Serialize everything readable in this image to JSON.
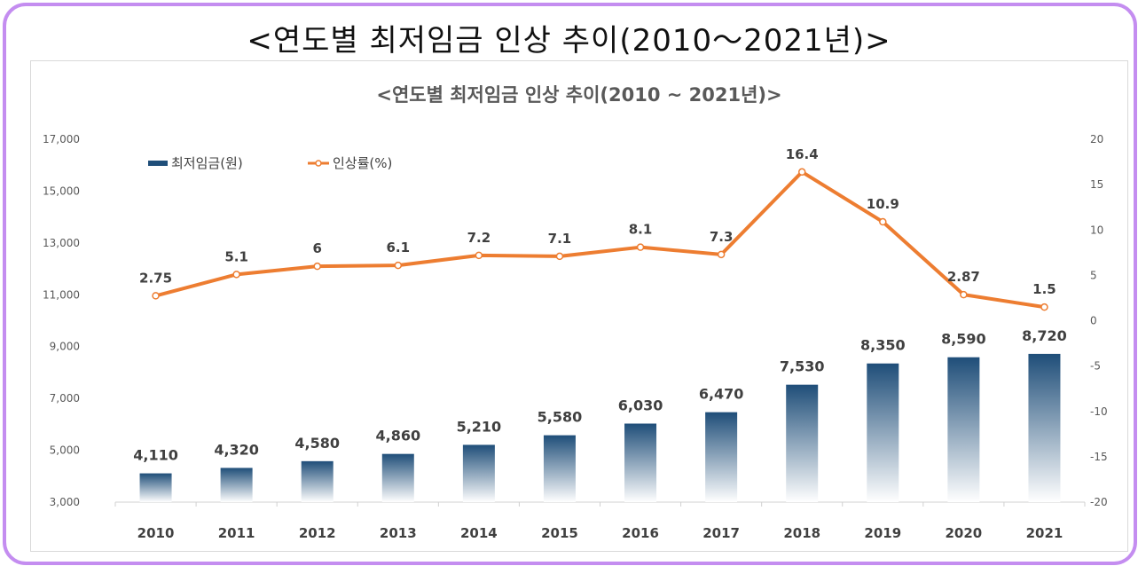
{
  "page_title": "<연도별 최저임금 인상 추이(2010～2021년)>",
  "chart_data": {
    "type": "bar+line",
    "title": "<연도별 최저임금 인상 추이(2010 ~ 2021년)>",
    "categories": [
      "2010",
      "2011",
      "2012",
      "2013",
      "2014",
      "2015",
      "2016",
      "2017",
      "2018",
      "2019",
      "2020",
      "2021"
    ],
    "series": [
      {
        "name": "최저임금(원)",
        "type": "bar",
        "axis": "left",
        "values": [
          4110,
          4320,
          4580,
          4860,
          5210,
          5580,
          6030,
          6470,
          7530,
          8350,
          8590,
          8720
        ],
        "labels": [
          "4,110",
          "4,320",
          "4,580",
          "4,860",
          "5,210",
          "5,580",
          "6,030",
          "6,470",
          "7,530",
          "8,350",
          "8,590",
          "8,720"
        ],
        "color_top": "#1f4e79",
        "color_bottom": "#ffffff"
      },
      {
        "name": "인상률(%)",
        "type": "line",
        "axis": "right",
        "values": [
          2.75,
          5.1,
          6,
          6.1,
          7.2,
          7.1,
          8.1,
          7.3,
          16.4,
          10.9,
          2.87,
          1.5
        ],
        "labels": [
          "2.75",
          "5.1",
          "6",
          "6.1",
          "7.2",
          "7.1",
          "8.1",
          "7.3",
          "16.4",
          "10.9",
          "2.87",
          "1.5"
        ],
        "color": "#ed7d31"
      }
    ],
    "y_left": {
      "min": 3000,
      "max": 17000,
      "ticks": [
        "3,000",
        "5,000",
        "7,000",
        "9,000",
        "11,000",
        "13,000",
        "15,000",
        "17,000"
      ],
      "tick_values": [
        3000,
        5000,
        7000,
        9000,
        11000,
        13000,
        15000,
        17000
      ]
    },
    "y_right": {
      "min": -20,
      "max": 20,
      "ticks": [
        "-20",
        "-15",
        "-10",
        "-5",
        "0",
        "5",
        "10",
        "15",
        "20"
      ],
      "tick_values": [
        -20,
        -15,
        -10,
        -5,
        0,
        5,
        10,
        15,
        20
      ]
    },
    "legend_position": "top-left",
    "grid": false
  }
}
